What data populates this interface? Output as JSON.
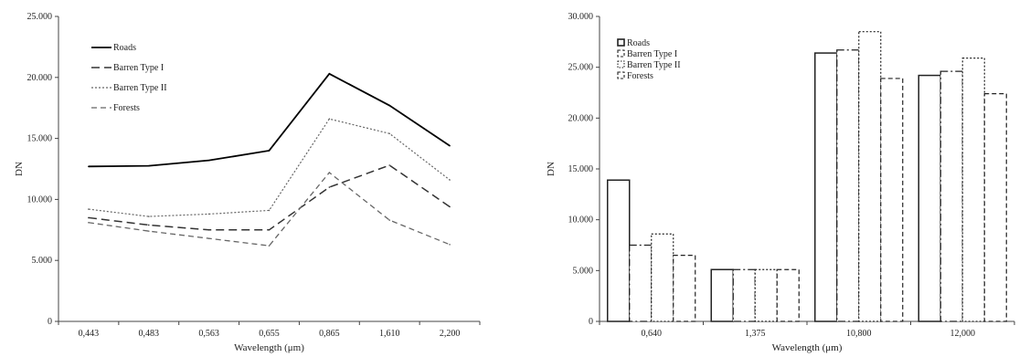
{
  "chart_data": [
    {
      "type": "line",
      "title": "",
      "xlabel": "Wavelength (μm)",
      "ylabel": "DN",
      "categories": [
        "0,443",
        "0,483",
        "0,563",
        "0,655",
        "0,865",
        "1,610",
        "2,200"
      ],
      "yticks": [
        "0",
        "5.000",
        "10.000",
        "15.000",
        "20.000",
        "25.000"
      ],
      "ylim": [
        0,
        25000
      ],
      "grid": false,
      "legend": "top-left",
      "series": [
        {
          "name": "Roads",
          "style": "solid",
          "color": "#000000",
          "values": [
            12700,
            12750,
            13200,
            14000,
            20300,
            17700,
            14400
          ]
        },
        {
          "name": "Barren Type I",
          "style": "dashed",
          "color": "#333333",
          "values": [
            8500,
            7900,
            7500,
            7500,
            11000,
            12800,
            9400
          ]
        },
        {
          "name": "Barren Type II",
          "style": "dotted",
          "color": "#666666",
          "values": [
            9200,
            8600,
            8800,
            9100,
            16600,
            15400,
            11600
          ]
        },
        {
          "name": "Forests",
          "style": "dashed-short",
          "color": "#666666",
          "values": [
            8100,
            7400,
            6800,
            6200,
            12200,
            8300,
            6300
          ]
        }
      ]
    },
    {
      "type": "bar",
      "title": "",
      "xlabel": "Wavelength (μm)",
      "ylabel": "DN",
      "categories": [
        "0,640",
        "1,375",
        "10,800",
        "12,000"
      ],
      "yticks": [
        "0",
        "5.000",
        "10.000",
        "15.000",
        "20.000",
        "25.000",
        "30.000"
      ],
      "ylim": [
        0,
        30000
      ],
      "grid": false,
      "legend": "top-left",
      "series": [
        {
          "name": "Roads",
          "style": "solid",
          "values": [
            13900,
            5100,
            26400,
            24200
          ]
        },
        {
          "name": "Barren Type I",
          "style": "dash-dot",
          "values": [
            7500,
            5100,
            26700,
            24600
          ]
        },
        {
          "name": "Barren Type II",
          "style": "dotted",
          "values": [
            8600,
            5100,
            28500,
            25900
          ]
        },
        {
          "name": "Forests",
          "style": "dashed",
          "values": [
            6500,
            5100,
            23900,
            22400
          ]
        }
      ]
    }
  ]
}
